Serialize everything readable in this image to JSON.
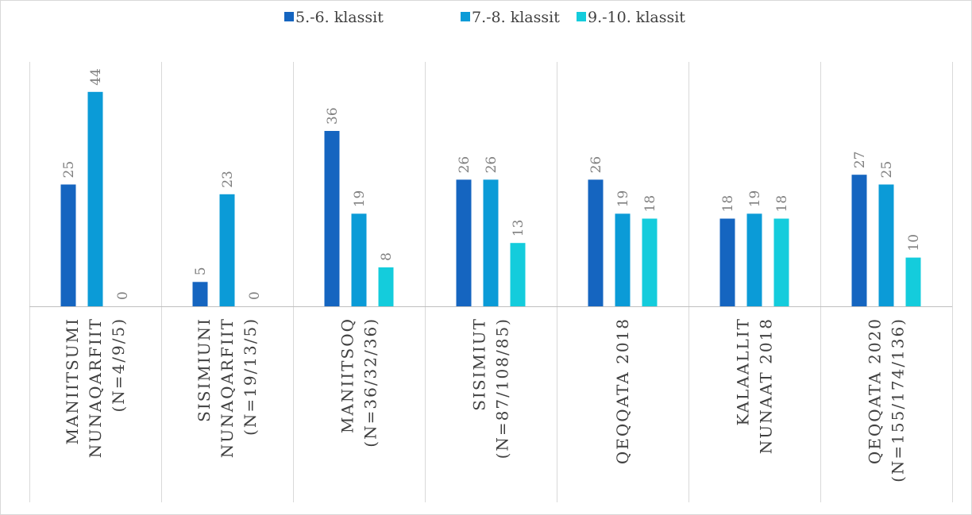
{
  "chart_data": {
    "type": "bar",
    "title": "",
    "xlabel": "",
    "ylabel": "",
    "ylim": [
      0,
      50
    ],
    "grid": false,
    "legend": "top-center",
    "categories": [
      [
        "MANIITSUMI",
        "NUNAQARFIIT",
        "(N=4/9/5)"
      ],
      [
        "SISIMIUNI",
        "NUNAQARFIIT",
        "(N=19/13/5)"
      ],
      [
        "MANIITSOQ",
        "(N=36/32/36)"
      ],
      [
        "SISIMIUT",
        "(N=87/108/85)"
      ],
      [
        "QEQQATA 2018"
      ],
      [
        "KALAALLIT",
        "NUNAAT 2018"
      ],
      [
        "QEQQATA 2020",
        "(N=155/174/136)"
      ]
    ],
    "series": [
      {
        "name": "5.-6. klassit",
        "color": "#1565c0",
        "values": [
          25,
          5,
          36,
          26,
          26,
          18,
          27
        ]
      },
      {
        "name": "7.-8. klassit",
        "color": "#0b9bd7",
        "values": [
          44,
          23,
          19,
          26,
          19,
          19,
          25
        ]
      },
      {
        "name": "9.-10. klassit",
        "color": "#14ccdc",
        "values": [
          0,
          0,
          8,
          13,
          18,
          18,
          10
        ]
      }
    ]
  }
}
